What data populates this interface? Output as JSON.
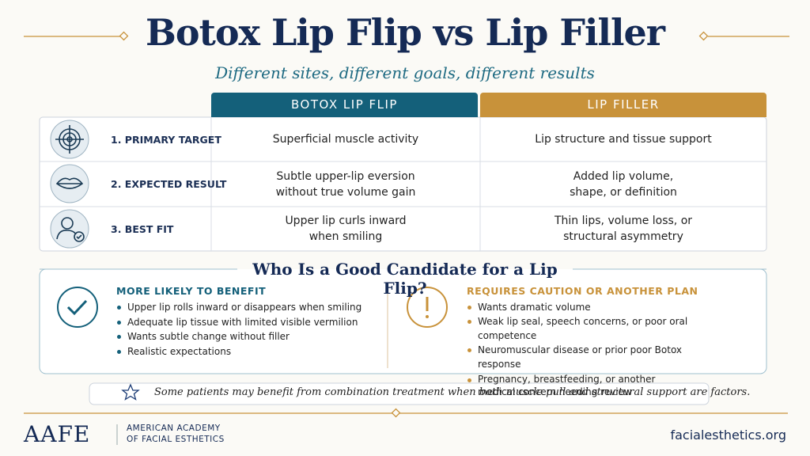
{
  "header": {
    "title": "Botox Lip Flip vs Lip Filler",
    "subtitle": "Different sites, different goals, different results"
  },
  "table": {
    "columns": [
      "BOTOX LIP FLIP",
      "LIP FILLER"
    ],
    "rows": [
      {
        "label": "1. PRIMARY TARGET",
        "cells": [
          "Superficial muscle activity",
          "Lip structure and tissue support"
        ]
      },
      {
        "label": "2. EXPECTED RESULT",
        "cells": [
          "Subtle upper-lip eversion without true volume gain",
          "Added lip volume, shape, or definition"
        ]
      },
      {
        "label": "3. BEST FIT",
        "cells": [
          "Upper lip curls inward when smiling",
          "Thin lips, volume loss, or structural asymmetry"
        ]
      }
    ]
  },
  "candidates": {
    "title": "Who Is a Good Candidate for a Lip Flip?",
    "left": {
      "heading": "MORE LIKELY TO BENEFIT",
      "items": [
        "Upper lip rolls inward or disappears when smiling",
        "Adequate lip tissue with limited visible vermilion",
        "Wants subtle change without filler",
        "Realistic expectations"
      ]
    },
    "right": {
      "heading": "REQUIRES CAUTION OR ANOTHER PLAN",
      "items": [
        "Wants dramatic volume",
        "Weak lip seal, speech concerns, or poor oral competence",
        "Neuromuscular disease or prior poor Botox response",
        "Pregnancy, breastfeeding, or another medical concern needing review"
      ]
    }
  },
  "note": "Some patients may benefit from combination treatment when both muscle pull and structural support are factors.",
  "footer": {
    "logo": "AAFE",
    "org_lines": [
      "AMERICAN ACADEMY",
      "OF FACIAL ESTHETICS"
    ],
    "website": "facialesthetics.org"
  }
}
